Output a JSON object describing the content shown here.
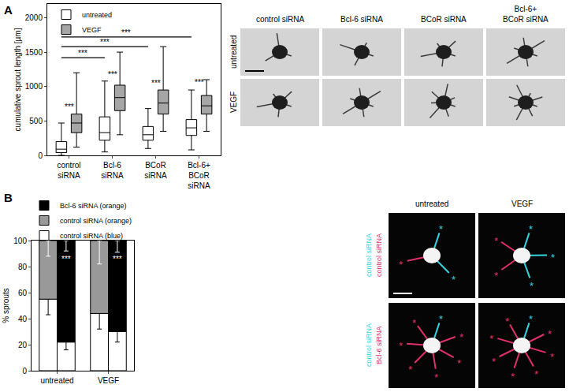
{
  "chart_data": [
    {
      "type": "box",
      "title": "A",
      "y_label": "cumulative sprout length [µm]",
      "categories": [
        "control\nsiRNA",
        "Bcl-6\nsiRNA",
        "BCoR\nsiRNA",
        "Bcl-6+\nBCoR\nsiRNA"
      ],
      "series": [
        {
          "name": "untreated",
          "color": "#ffffff",
          "min": [
            0,
            50,
            100,
            80
          ],
          "q1": [
            40,
            220,
            220,
            290
          ],
          "median": [
            90,
            330,
            300,
            400
          ],
          "q3": [
            200,
            560,
            420,
            520
          ],
          "max": [
            470,
            1080,
            680,
            950
          ]
        },
        {
          "name": "VEGF",
          "color": "#a6a6a6",
          "min": [
            120,
            300,
            350,
            350
          ],
          "q1": [
            330,
            650,
            600,
            600
          ],
          "median": [
            470,
            840,
            760,
            720
          ],
          "q3": [
            600,
            1020,
            950,
            870
          ],
          "max": [
            1200,
            1500,
            1580,
            1100
          ]
        }
      ],
      "ylim": [
        0,
        2200
      ],
      "yticks": [
        0,
        500,
        1000,
        1500,
        2000
      ],
      "grid": false,
      "legend": "upper left",
      "brackets": [
        {
          "from": "control\nsiRNA",
          "to": "Bcl-6+\nBCoR\nsiRNA",
          "y": 1720,
          "label": "***"
        },
        {
          "from": "control\nsiRNA",
          "to": "BCoR\nsiRNA",
          "y": 1580,
          "label": "***"
        },
        {
          "from": "control\nsiRNA",
          "to": "Bcl-6\nsiRNA",
          "y": 1420,
          "label": "***"
        }
      ],
      "annotations": [
        {
          "category": "control\nsiRNA",
          "y": 700,
          "label": "***"
        },
        {
          "category": "Bcl-6\nsiRNA",
          "y": 1180,
          "label": "***"
        },
        {
          "category": "BCoR\nsiRNA",
          "y": 1050,
          "label": "***"
        },
        {
          "category": "Bcl-6+\nBCoR\nsiRNA",
          "y": 1060,
          "label": "***"
        }
      ]
    },
    {
      "type": "bar",
      "title": "B",
      "y_label": "% sprouts",
      "stacked": true,
      "categories": [
        "untreated",
        "VEGF"
      ],
      "series": [
        {
          "name": "control siRNA (blue)",
          "color": "#ffffff",
          "values": [
            [
              55,
              22
            ],
            [
              44,
              30
            ]
          ],
          "errors": [
            [
              12,
              6
            ],
            [
              12,
              8
            ]
          ]
        },
        {
          "name": "control siRNA (orange)",
          "color": "#999999",
          "values": [
            [
              45,
              null
            ],
            [
              56,
              null
            ]
          ],
          "errors": [
            [
              12,
              null
            ],
            [
              18,
              null
            ]
          ]
        },
        {
          "name": "Bcl-6 siRNA (orange)",
          "color": "#000000",
          "values": [
            [
              null,
              78
            ],
            [
              null,
              70
            ]
          ],
          "errors": [
            [
              null,
              8
            ],
            [
              null,
              9
            ]
          ]
        }
      ],
      "ylim": [
        0,
        100
      ],
      "yticks": [
        0,
        20,
        40,
        60,
        80,
        100
      ],
      "grid": false,
      "legend": "upper left",
      "annotations": [
        {
          "category": "untreated",
          "bar": 1,
          "y": 86,
          "label": "***"
        },
        {
          "category": "VEGF",
          "bar": 1,
          "y": 86,
          "label": "***"
        }
      ]
    }
  ],
  "images": [
    {
      "columns": [
        "control siRNA",
        "Bcl-6 siRNA",
        "BCoR siRNA",
        "Bcl-6+\nBCoR siRNA"
      ],
      "rows": [
        "untreated",
        "VEGF"
      ]
    },
    {
      "columns": [
        "untreated",
        "VEGF"
      ],
      "marker": "*",
      "rows": [
        {
          "labels": [
            {
              "text": "control siRNA",
              "color": "#33d6e0"
            },
            {
              "text": "control siRNA",
              "color": "#e0306a"
            }
          ]
        },
        {
          "labels": [
            {
              "text": "control siRNA",
              "color": "#33d6e0"
            },
            {
              "text": "Bcl-6 siRNA",
              "color": "#e0306a"
            }
          ]
        }
      ],
      "asterisks": [
        [
          [
            2,
            1
          ],
          [
            3,
            2
          ]
        ],
        [
          [
            1,
            6
          ],
          [
            1,
            7
          ]
        ]
      ]
    }
  ]
}
